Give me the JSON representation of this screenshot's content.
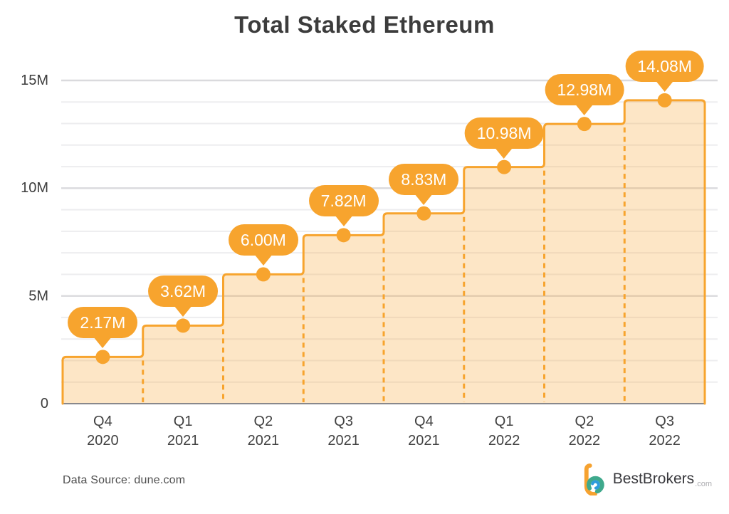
{
  "title": "Total Staked Ethereum",
  "source_note": "Data Source: dune.com",
  "brand": {
    "name": "BestBrokers",
    "tld": ".com"
  },
  "colors": {
    "accent_orange": "#F7A42E",
    "area_fill": "rgba(247,164,46,0.27)",
    "grid_minor": "#EDEDEF",
    "grid_major": "#DADADD",
    "axis_line": "#88888C",
    "text_dark": "#3E3E3E",
    "bubble_text": "#FFFFFF",
    "logo_orange": "#F6A230",
    "logo_teal": "#3FA98C",
    "logo_blue": "#2D9CDB"
  },
  "chart_data": {
    "type": "area",
    "step": true,
    "title": "Total Staked Ethereum",
    "xlabel": "",
    "ylabel": "",
    "categories": [
      [
        "Q4",
        "2020"
      ],
      [
        "Q1",
        "2021"
      ],
      [
        "Q2",
        "2021"
      ],
      [
        "Q3",
        "2021"
      ],
      [
        "Q4",
        "2021"
      ],
      [
        "Q1",
        "2022"
      ],
      [
        "Q2",
        "2022"
      ],
      [
        "Q3",
        "2022"
      ]
    ],
    "values": [
      2.17,
      3.62,
      6.0,
      7.82,
      8.83,
      10.98,
      12.98,
      14.08
    ],
    "labels": [
      "2.17M",
      "3.62M",
      "6.00M",
      "7.82M",
      "8.83M",
      "10.98M",
      "12.98M",
      "14.08M"
    ],
    "unit": "M",
    "ylim": [
      0,
      15
    ],
    "yticks": [
      {
        "value": 0,
        "label": "0"
      },
      {
        "value": 5,
        "label": "5M"
      },
      {
        "value": 10,
        "label": "10M"
      },
      {
        "value": 15,
        "label": "15M"
      }
    ],
    "minor_grid_step": 1,
    "grid": true,
    "legend": false
  }
}
